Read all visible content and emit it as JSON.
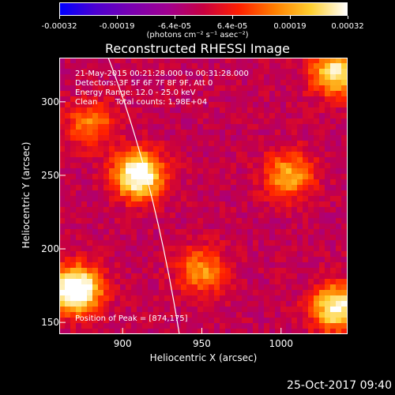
{
  "colorbar": {
    "ticks": [
      "-0.00032",
      "-0.00019",
      "-6.4e-05",
      "6.4e-05",
      "0.00019",
      "0.00032"
    ],
    "units": "(photons cm⁻² s⁻¹ asec⁻²)",
    "range": [
      -0.00032,
      0.00032
    ],
    "colors": [
      "#0000ff",
      "#4d00d0",
      "#7a00b0",
      "#a00090",
      "#c80040",
      "#ff2000",
      "#ff8000",
      "#ffd030",
      "#ffffff"
    ]
  },
  "title": "Reconstructed RHESSI Image",
  "info": {
    "time_range": "21-May-2015 00:21:28.000 to 00:31:28.000",
    "detectors": "Detectors: 3F 5F 6F 7F 8F 9F, Att 0",
    "energy": "Energy Range: 12.0 - 25.0 keV",
    "method": "Clean",
    "counts": "Total counts: 1.98E+04"
  },
  "peak": "Position of Peak = [874,175]",
  "axes": {
    "xlabel": "Heliocentric X (arcsec)",
    "ylabel": "Heliocentric Y (arcsec)",
    "xticks": [
      "900",
      "950",
      "1000"
    ],
    "yticks": [
      "150",
      "200",
      "250",
      "300"
    ],
    "xlim": [
      860,
      1042
    ],
    "ylim": [
      142,
      330
    ]
  },
  "chart_data": {
    "type": "heatmap",
    "title": "Reconstructed RHESSI Image",
    "xlabel": "Heliocentric X (arcsec)",
    "ylabel": "Heliocentric Y (arcsec)",
    "xlim": [
      860,
      1042
    ],
    "ylim": [
      142,
      330
    ],
    "peak": [
      874,
      175
    ],
    "sources": [
      {
        "x": 870,
        "y": 172,
        "value": 0.00032
      },
      {
        "x": 910,
        "y": 250,
        "value": 0.00028
      },
      {
        "x": 1005,
        "y": 250,
        "value": 0.00016
      },
      {
        "x": 1035,
        "y": 320,
        "value": 0.00022
      },
      {
        "x": 1035,
        "y": 160,
        "value": 0.00024
      },
      {
        "x": 950,
        "y": 185,
        "value": 0.00014
      },
      {
        "x": 880,
        "y": 285,
        "value": 0.00012
      }
    ]
  },
  "timestamp": "25-Oct-2017 09:40"
}
